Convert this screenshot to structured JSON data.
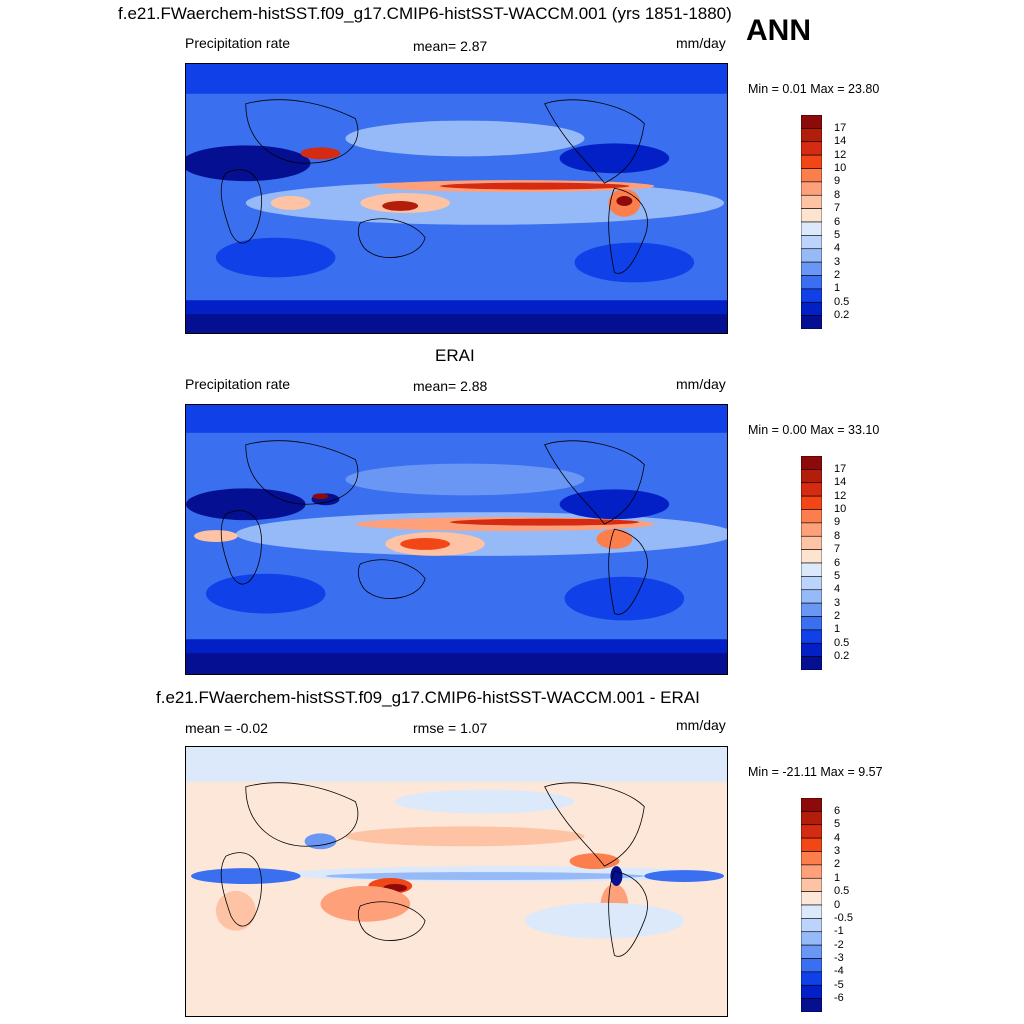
{
  "season": "ANN",
  "panels": [
    {
      "title": "f.e21.FWaerchem-histSST.f09_g17.CMIP6-histSST-WACCM.001 (yrs 1851-1880)",
      "left_label": "Precipitation rate",
      "center_label": "mean=   2.87",
      "units": "mm/day",
      "minmax": "Min =   0.01 Max =  23.80"
    },
    {
      "title": "ERAI",
      "left_label": "Precipitation rate",
      "center_label": "mean=   2.88",
      "units": "mm/day",
      "minmax": "Min =   0.00 Max =  33.10"
    },
    {
      "title": "f.e21.FWaerchem-histSST.f09_g17.CMIP6-histSST-WACCM.001 - ERAI",
      "left_label": "mean =  -0.02",
      "center_label": "rmse =   1.07",
      "units": "mm/day",
      "minmax": "Min = -21.11 Max =   9.57"
    }
  ],
  "chart_data": [
    {
      "type": "heatmap",
      "title": "f.e21.FWaerchem-histSST.f09_g17.CMIP6-histSST-WACCM.001 (yrs 1851-1880)",
      "variable": "Precipitation rate",
      "units": "mm/day",
      "mean": 2.87,
      "min": 0.01,
      "max": 23.8,
      "colorbar_levels": [
        "17",
        "14",
        "12",
        "10",
        "9",
        "8",
        "7",
        "6",
        "5",
        "4",
        "3",
        "2",
        "1",
        "0.5",
        "0.2"
      ],
      "colorbar_colors": [
        "#8c0a0a",
        "#b21d0c",
        "#d52b12",
        "#f24616",
        "#fd7e4d",
        "#fea07a",
        "#fec2a4",
        "#fee4cf",
        "#dbe9fb",
        "#bcd4fb",
        "#96b9f7",
        "#6997f3",
        "#3a6ff0",
        "#1040e8",
        "#0320c6",
        "#050f91"
      ]
    },
    {
      "type": "heatmap",
      "title": "ERAI",
      "variable": "Precipitation rate",
      "units": "mm/day",
      "mean": 2.88,
      "min": 0.0,
      "max": 33.1,
      "colorbar_levels": [
        "17",
        "14",
        "12",
        "10",
        "9",
        "8",
        "7",
        "6",
        "5",
        "4",
        "3",
        "2",
        "1",
        "0.5",
        "0.2"
      ],
      "colorbar_colors": [
        "#8c0a0a",
        "#b21d0c",
        "#d52b12",
        "#f24616",
        "#fd7e4d",
        "#fea07a",
        "#fec2a4",
        "#fee4cf",
        "#dbe9fb",
        "#bcd4fb",
        "#96b9f7",
        "#6997f3",
        "#3a6ff0",
        "#1040e8",
        "#0320c6",
        "#050f91"
      ]
    },
    {
      "type": "heatmap",
      "title": "f.e21.FWaerchem-histSST.f09_g17.CMIP6-histSST-WACCM.001 - ERAI",
      "units": "mm/day",
      "mean": -0.02,
      "rmse": 1.07,
      "min": -21.11,
      "max": 9.57,
      "colorbar_levels": [
        "6",
        "5",
        "4",
        "3",
        "2",
        "1",
        "0.5",
        "0",
        "-0.5",
        "-1",
        "-2",
        "-3",
        "-4",
        "-5",
        "-6"
      ],
      "colorbar_colors": [
        "#8c0a0a",
        "#b21d0c",
        "#d52b12",
        "#f24616",
        "#fd7e4d",
        "#fea07a",
        "#fec2a4",
        "#fde7d8",
        "#dbe9fb",
        "#bcd4fb",
        "#96b9f7",
        "#6997f3",
        "#3a6ff0",
        "#1040e8",
        "#0320c6",
        "#050f91"
      ]
    }
  ]
}
